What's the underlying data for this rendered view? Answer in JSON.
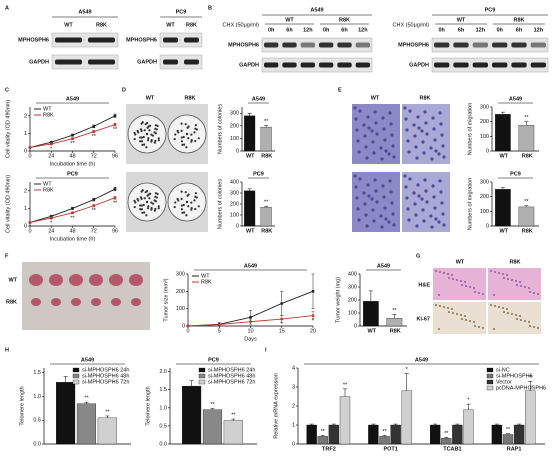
{
  "panel_labels": [
    "A",
    "B",
    "C",
    "D",
    "E",
    "F",
    "G",
    "H",
    "I"
  ],
  "blot_A": [
    {
      "title": "A549",
      "lanes": [
        "WT",
        "R8K"
      ],
      "rows": [
        "MPHOSPH6",
        "GAPDH"
      ]
    },
    {
      "title": "PC9",
      "lanes": [
        "WT",
        "R8K"
      ],
      "rows": [
        "MPHOSPH6",
        "GAPDH"
      ]
    }
  ],
  "blot_B": [
    {
      "title": "A549",
      "treatment": "CHX (50μg/ml)",
      "groups": [
        "WT",
        "R8K"
      ],
      "times": [
        "0h",
        "6h",
        "12h",
        "0h",
        "6h",
        "12h"
      ],
      "rows": [
        "MPHOSPH6",
        "GAPDH"
      ]
    },
    {
      "title": "PC9",
      "treatment": "CHX (50μg/ml)",
      "groups": [
        "WT",
        "R8K"
      ],
      "times": [
        "0h",
        "6h",
        "12h",
        "0h",
        "6h",
        "12h"
      ],
      "rows": [
        "MPHOSPH6",
        "GAPDH"
      ]
    }
  ],
  "images_D": {
    "columns": [
      "WT",
      "R8K"
    ]
  },
  "images_E": {
    "columns": [
      "WT",
      "R8K"
    ]
  },
  "images_F": {
    "rows": [
      "WT",
      "R8K"
    ]
  },
  "images_G": {
    "columns": [
      "WT",
      "R8K"
    ],
    "rows": [
      "H&E",
      "Ki-67"
    ]
  },
  "chart_data": [
    {
      "type": "line",
      "title": "A549",
      "xlabel": "Incubation time (h)",
      "ylabel": "Cell vitality (OD 490nm)",
      "x": [
        0,
        24,
        48,
        72,
        96
      ],
      "xlim": [
        0,
        96
      ],
      "xticks": [
        0,
        24,
        48,
        72,
        96
      ],
      "ylim": [
        0,
        2.5
      ],
      "yticks": [
        0,
        1,
        2
      ],
      "legend": true,
      "series": [
        {
          "name": "WT",
          "color": "#222222",
          "values": [
            0.2,
            0.5,
            0.9,
            1.4,
            2.0
          ],
          "errors": [
            0.03,
            0.05,
            0.06,
            0.08,
            0.1
          ]
        },
        {
          "name": "R8K",
          "color": "#c0392b",
          "values": [
            0.2,
            0.4,
            0.7,
            1.1,
            1.5
          ],
          "errors": [
            0.03,
            0.04,
            0.05,
            0.07,
            0.08
          ],
          "significance": [
            null,
            "*",
            "**",
            "**",
            "**"
          ]
        }
      ]
    },
    {
      "type": "line",
      "title": "PC9",
      "xlabel": "Incubation time (h)",
      "ylabel": "Cell vitality (OD 490nm)",
      "x": [
        0,
        24,
        48,
        72,
        96
      ],
      "xlim": [
        0,
        96
      ],
      "xticks": [
        0,
        24,
        48,
        72,
        96
      ],
      "ylim": [
        0,
        2.5
      ],
      "yticks": [
        0,
        1,
        2
      ],
      "legend": true,
      "series": [
        {
          "name": "WT",
          "color": "#222222",
          "values": [
            0.2,
            0.55,
            1.0,
            1.5,
            2.1
          ],
          "errors": [
            0.03,
            0.05,
            0.06,
            0.08,
            0.1
          ]
        },
        {
          "name": "R8K",
          "color": "#c0392b",
          "values": [
            0.2,
            0.45,
            0.75,
            1.15,
            1.6
          ],
          "errors": [
            0.03,
            0.04,
            0.05,
            0.07,
            0.08
          ],
          "significance": [
            null,
            "*",
            "**",
            "**",
            "**"
          ]
        }
      ]
    },
    {
      "type": "bar",
      "title": "A549",
      "ylabel": "Numbers of colonies",
      "categories": [
        "WT",
        "R8K"
      ],
      "values": [
        280,
        190
      ],
      "errors": [
        20,
        12
      ],
      "colors": [
        "#111111",
        "#b0b0b0"
      ],
      "significance": [
        null,
        "**"
      ],
      "ylim": [
        0,
        350
      ],
      "yticks": [
        0,
        100,
        200,
        300
      ]
    },
    {
      "type": "bar",
      "title": "PC9",
      "ylabel": "Numbers of colonies",
      "categories": [
        "WT",
        "R8K"
      ],
      "values": [
        320,
        170
      ],
      "errors": [
        18,
        10
      ],
      "colors": [
        "#111111",
        "#b0b0b0"
      ],
      "significance": [
        null,
        "**"
      ],
      "ylim": [
        0,
        400
      ],
      "yticks": [
        0,
        100,
        200,
        300,
        400
      ]
    },
    {
      "type": "bar",
      "title": "A549",
      "ylabel": "Numbers of migration",
      "categories": [
        "WT",
        "R8K"
      ],
      "values": [
        250,
        175
      ],
      "errors": [
        15,
        25
      ],
      "colors": [
        "#111111",
        "#b0b0b0"
      ],
      "significance": [
        null,
        "**"
      ],
      "ylim": [
        0,
        300
      ],
      "yticks": [
        0,
        100,
        200,
        300
      ]
    },
    {
      "type": "bar",
      "title": "PC9",
      "ylabel": "Numbers of migration",
      "categories": [
        "WT",
        "R8K"
      ],
      "values": [
        250,
        130
      ],
      "errors": [
        12,
        8
      ],
      "colors": [
        "#111111",
        "#b0b0b0"
      ],
      "significance": [
        null,
        "**"
      ],
      "ylim": [
        0,
        300
      ],
      "yticks": [
        0,
        100,
        200,
        300
      ]
    },
    {
      "type": "line",
      "title": "A549",
      "xlabel": "Days",
      "ylabel": "Tumor size (mm³)",
      "x": [
        0,
        5,
        10,
        15,
        20
      ],
      "xlim": [
        0,
        20
      ],
      "xticks": [
        0,
        5,
        10,
        15,
        20
      ],
      "ylim": [
        0,
        300
      ],
      "yticks": [
        0,
        100,
        200,
        300
      ],
      "legend": true,
      "series": [
        {
          "name": "WT",
          "color": "#222222",
          "values": [
            0,
            10,
            50,
            130,
            200
          ],
          "errors": [
            0,
            10,
            40,
            70,
            100
          ]
        },
        {
          "name": "R8K",
          "color": "#c0392b",
          "values": [
            0,
            8,
            25,
            40,
            60
          ],
          "errors": [
            0,
            5,
            15,
            20,
            25
          ],
          "significance": [
            null,
            null,
            null,
            "*",
            "*"
          ]
        }
      ]
    },
    {
      "type": "bar",
      "title": "A549",
      "ylabel": "Tumor weight (mg)",
      "categories": [
        "WT",
        "R8K"
      ],
      "values": [
        190,
        60
      ],
      "errors": [
        80,
        30
      ],
      "colors": [
        "#111111",
        "#b0b0b0"
      ],
      "significance": [
        null,
        "**"
      ],
      "ylim": [
        0,
        400
      ],
      "yticks": [
        0,
        100,
        200,
        300,
        400
      ]
    },
    {
      "type": "bar",
      "title": "A549",
      "ylabel": "Telomere length",
      "legend": true,
      "ylim": [
        0,
        1.6
      ],
      "yticks": [
        {
          "value": 0,
          "label": "0.0"
        },
        0.5,
        {
          "value": 1,
          "label": "1.0"
        },
        1.5
      ],
      "series": [
        {
          "name": "si-MPHOSPH6 24h",
          "color": "#111111",
          "values": [
            1.3
          ],
          "errors": [
            0.12
          ]
        },
        {
          "name": "si-MPHOSPH6 48h",
          "color": "#888888",
          "values": [
            0.85
          ],
          "errors": [
            0.03
          ],
          "significance": [
            "**"
          ]
        },
        {
          "name": "si-MPHOSPH6 72h",
          "color": "#d0d0d0",
          "values": [
            0.55
          ],
          "errors": [
            0.04
          ],
          "significance": [
            "**"
          ]
        }
      ]
    },
    {
      "type": "bar",
      "title": "PC9",
      "ylabel": "Telomere length",
      "legend": true,
      "ylim": [
        0,
        2.1
      ],
      "yticks": [
        {
          "value": 0,
          "label": "0.0"
        },
        0.5,
        {
          "value": 1,
          "label": "1.0"
        },
        1.5,
        {
          "value": 2,
          "label": "2.0"
        }
      ],
      "series": [
        {
          "name": "si-MPHOSPH6 24h",
          "color": "#111111",
          "values": [
            1.6
          ],
          "errors": [
            0.15
          ]
        },
        {
          "name": "si-MPHOSPH6 48h",
          "color": "#888888",
          "values": [
            0.95
          ],
          "errors": [
            0.03
          ],
          "significance": [
            "**"
          ]
        },
        {
          "name": "si-MPHOSPH6 72h",
          "color": "#d0d0d0",
          "values": [
            0.65
          ],
          "errors": [
            0.04
          ],
          "significance": [
            "**"
          ]
        }
      ]
    },
    {
      "type": "bar",
      "title": "A549",
      "ylabel": "Relative mRNA expression",
      "legend": true,
      "categories": [
        "TRF2",
        "POT1",
        "TCAB1",
        "RAP1"
      ],
      "ylim": [
        0,
        4
      ],
      "yticks": [
        0,
        1,
        2,
        3,
        4
      ],
      "series": [
        {
          "name": "si-NC",
          "color": "#111111",
          "values": [
            1,
            1,
            1,
            1
          ],
          "errors": [
            0.05,
            0.05,
            0.05,
            0.05
          ]
        },
        {
          "name": "si-MPHOSPH6",
          "color": "#777777",
          "values": [
            0.4,
            0.4,
            0.3,
            0.5
          ],
          "errors": [
            0.05,
            0.05,
            0.05,
            0.05
          ],
          "significance": [
            "**",
            "**",
            "**",
            "**"
          ]
        },
        {
          "name": "Vector",
          "color": "#333333",
          "values": [
            1,
            1,
            1,
            1
          ],
          "errors": [
            0.05,
            0.05,
            0.05,
            0.05
          ]
        },
        {
          "name": "pcDNA-MPHOSPH6",
          "color": "#d0d0d0",
          "values": [
            2.5,
            2.8,
            1.8,
            2.8
          ],
          "errors": [
            0.4,
            0.9,
            0.3,
            0.5
          ],
          "significance": [
            "**",
            "*",
            "*",
            "**"
          ]
        }
      ]
    }
  ]
}
